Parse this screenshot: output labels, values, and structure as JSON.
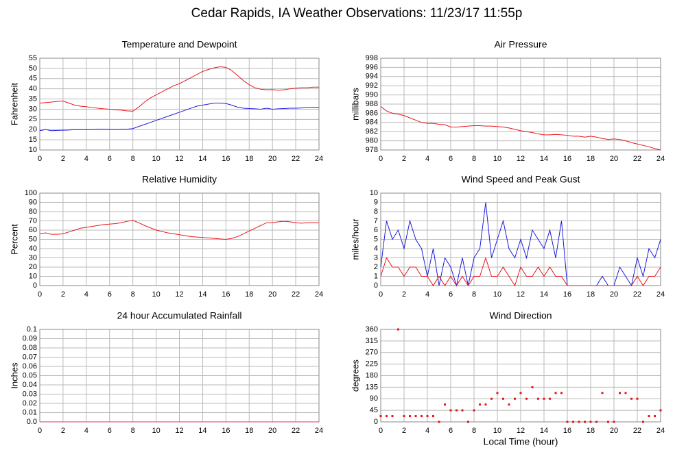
{
  "title": "Cedar Rapids, IA Weather Observations: 11/23/17 11:55p",
  "chart_data": [
    {
      "type": "line",
      "title": "Temperature and Dewpoint",
      "ylabel": "Fahrenheit",
      "x": [
        0,
        0.5,
        1,
        1.5,
        2,
        2.5,
        3,
        3.5,
        4,
        4.5,
        5,
        5.5,
        6,
        6.5,
        7,
        7.5,
        8,
        8.5,
        9,
        9.5,
        10,
        10.5,
        11,
        11.5,
        12,
        12.5,
        13,
        13.5,
        14,
        14.5,
        15,
        15.5,
        16,
        16.5,
        17,
        17.5,
        18,
        18.5,
        19,
        19.5,
        20,
        20.5,
        21,
        21.5,
        22,
        22.5,
        23,
        23.5,
        24
      ],
      "xlim": [
        0,
        24
      ],
      "xticks": [
        0,
        2,
        4,
        6,
        8,
        10,
        12,
        14,
        16,
        18,
        20,
        22,
        24
      ],
      "ylim": [
        10,
        55
      ],
      "yticks": [
        10,
        15,
        20,
        25,
        30,
        35,
        40,
        45,
        50,
        55
      ],
      "grid": true,
      "series": [
        {
          "color": "#e8141b",
          "values": [
            33,
            33.2,
            33.5,
            33.8,
            34,
            33,
            32,
            31.5,
            31.2,
            30.8,
            30.5,
            30.2,
            30,
            29.7,
            29.5,
            29.2,
            29,
            31,
            33.5,
            35.5,
            37,
            38.5,
            40,
            41.5,
            42.5,
            44,
            45.5,
            47,
            48.5,
            49.5,
            50.3,
            50.8,
            50.5,
            49,
            46.5,
            44,
            42,
            40.5,
            39.8,
            39.5,
            39.6,
            39.3,
            39.5,
            40,
            40.3,
            40.5,
            40.5,
            40.8,
            40.8
          ]
        },
        {
          "color": "#1a1ae0",
          "values": [
            19.5,
            20,
            19.5,
            19.6,
            19.7,
            19.8,
            20,
            20,
            20,
            20,
            20.2,
            20.2,
            20.1,
            20,
            20.1,
            20.2,
            20.5,
            21.5,
            22.5,
            23.5,
            24.5,
            25.5,
            26.5,
            27.5,
            28.5,
            29.5,
            30.5,
            31.5,
            32,
            32.5,
            33,
            33,
            32.8,
            32,
            31,
            30.5,
            30.3,
            30.2,
            30,
            30.5,
            30,
            30.2,
            30.3,
            30.5,
            30.5,
            30.6,
            30.8,
            31,
            31
          ]
        }
      ]
    },
    {
      "type": "line",
      "title": "Air Pressure",
      "ylabel": "millibars",
      "x": [
        0,
        0.5,
        1,
        1.5,
        2,
        2.5,
        3,
        3.5,
        4,
        4.5,
        5,
        5.5,
        6,
        6.5,
        7,
        7.5,
        8,
        8.5,
        9,
        9.5,
        10,
        10.5,
        11,
        11.5,
        12,
        12.5,
        13,
        13.5,
        14,
        14.5,
        15,
        15.5,
        16,
        16.5,
        17,
        17.5,
        18,
        18.5,
        19,
        19.5,
        20,
        20.5,
        21,
        21.5,
        22,
        22.5,
        23,
        23.5,
        24
      ],
      "xlim": [
        0,
        24
      ],
      "xticks": [
        0,
        2,
        4,
        6,
        8,
        10,
        12,
        14,
        16,
        18,
        20,
        22,
        24
      ],
      "ylim": [
        978,
        998
      ],
      "yticks": [
        978,
        980,
        982,
        984,
        986,
        988,
        990,
        992,
        994,
        996,
        998
      ],
      "grid": true,
      "series": [
        {
          "color": "#e8141b",
          "values": [
            987.5,
            986.5,
            986,
            985.8,
            985.5,
            985,
            984.5,
            984,
            983.8,
            983.8,
            983.6,
            983.5,
            983,
            983,
            983.1,
            983.2,
            983.3,
            983.3,
            983.2,
            983.2,
            983.1,
            983,
            982.8,
            982.5,
            982.2,
            982,
            981.8,
            981.5,
            981.3,
            981.3,
            981.4,
            981.3,
            981.2,
            981,
            981,
            980.8,
            981,
            980.8,
            980.5,
            980.3,
            980.4,
            980.3,
            980,
            979.6,
            979.3,
            979,
            978.7,
            978.3,
            978
          ]
        }
      ]
    },
    {
      "type": "line",
      "title": "Relative Humidity",
      "ylabel": "Percent",
      "x": [
        0,
        0.5,
        1,
        1.5,
        2,
        2.5,
        3,
        3.5,
        4,
        4.5,
        5,
        5.5,
        6,
        6.5,
        7,
        7.5,
        8,
        8.5,
        9,
        9.5,
        10,
        10.5,
        11,
        11.5,
        12,
        12.5,
        13,
        13.5,
        14,
        14.5,
        15,
        15.5,
        16,
        16.5,
        17,
        17.5,
        18,
        18.5,
        19,
        19.5,
        20,
        20.5,
        21,
        21.5,
        22,
        22.5,
        23,
        23.5,
        24
      ],
      "xlim": [
        0,
        24
      ],
      "xticks": [
        0,
        2,
        4,
        6,
        8,
        10,
        12,
        14,
        16,
        18,
        20,
        22,
        24
      ],
      "ylim": [
        0,
        100
      ],
      "yticks": [
        0,
        10,
        20,
        30,
        40,
        50,
        60,
        70,
        80,
        90,
        100
      ],
      "grid": true,
      "series": [
        {
          "color": "#e8141b",
          "values": [
            56,
            57,
            55.5,
            55.5,
            56,
            58,
            60,
            62,
            63,
            64,
            65,
            66,
            66.5,
            67,
            68,
            69.5,
            70.5,
            68,
            65,
            62.5,
            60,
            58.5,
            57,
            56,
            55,
            54,
            53,
            52.5,
            52,
            51.5,
            51,
            50.5,
            50,
            51,
            53,
            56,
            59,
            62,
            65,
            68,
            68,
            69,
            69.5,
            69,
            68,
            67.5,
            68,
            68,
            68
          ]
        }
      ]
    },
    {
      "type": "line",
      "title": "Wind Speed and Peak Gust",
      "ylabel": "miles/hour",
      "x": [
        0,
        0.5,
        1,
        1.5,
        2,
        2.5,
        3,
        3.5,
        4,
        4.5,
        5,
        5.5,
        6,
        6.5,
        7,
        7.5,
        8,
        8.5,
        9,
        9.5,
        10,
        10.5,
        11,
        11.5,
        12,
        12.5,
        13,
        13.5,
        14,
        14.5,
        15,
        15.5,
        16,
        16.5,
        17,
        17.5,
        18,
        18.5,
        19,
        19.5,
        20,
        20.5,
        21,
        21.5,
        22,
        22.5,
        23,
        23.5,
        24
      ],
      "xlim": [
        0,
        24
      ],
      "xticks": [
        0,
        2,
        4,
        6,
        8,
        10,
        12,
        14,
        16,
        18,
        20,
        22,
        24
      ],
      "ylim": [
        0,
        10
      ],
      "yticks": [
        0,
        1,
        2,
        3,
        4,
        5,
        6,
        7,
        8,
        9,
        10
      ],
      "grid": true,
      "series": [
        {
          "color": "#1a1ae0",
          "values": [
            2,
            7,
            5,
            6,
            4,
            7,
            5,
            4,
            1,
            4,
            0,
            3,
            2,
            0,
            3,
            0,
            3,
            4,
            9,
            3,
            5,
            7,
            4,
            3,
            5,
            3,
            6,
            5,
            4,
            6,
            3,
            7,
            0,
            0,
            0,
            0,
            0,
            0,
            1,
            0,
            0,
            2,
            1,
            0,
            3,
            1,
            4,
            3,
            5
          ]
        },
        {
          "color": "#e8141b",
          "values": [
            1,
            3,
            2,
            2,
            1,
            2,
            2,
            1,
            1,
            0,
            1,
            0,
            1,
            0,
            1,
            0,
            1,
            1,
            3,
            1,
            1,
            2,
            1,
            0,
            2,
            1,
            1,
            2,
            1,
            2,
            1,
            1,
            0,
            0,
            0,
            0,
            0,
            0,
            0,
            0,
            0,
            0,
            0,
            0,
            1,
            0,
            1,
            1,
            2
          ]
        }
      ]
    },
    {
      "type": "line",
      "title": "24 hour Accumulated Rainfall",
      "ylabel": "Inches",
      "x": [
        0,
        24
      ],
      "xlim": [
        0,
        24
      ],
      "xticks": [
        0,
        2,
        4,
        6,
        8,
        10,
        12,
        14,
        16,
        18,
        20,
        22,
        24
      ],
      "ylim": [
        0,
        0.1
      ],
      "yticks": [
        {
          "value": 0,
          "label": "0.0"
        },
        0.01,
        0.02,
        0.03,
        0.04,
        0.05,
        0.06,
        0.07,
        0.08,
        0.09,
        0.1
      ],
      "grid": true,
      "series": [
        {
          "color": "#d0307a",
          "values": [
            0,
            0
          ]
        }
      ]
    },
    {
      "type": "scatter",
      "title": "Wind Direction",
      "ylabel": "degrees",
      "xlabel": "Local Time (hour)",
      "x": [
        0,
        0.5,
        1,
        1.5,
        2,
        2.5,
        3,
        3.5,
        4,
        4.5,
        5,
        5.5,
        6,
        6.5,
        7,
        7.5,
        8,
        8.5,
        9,
        9.5,
        10,
        10.5,
        11,
        11.5,
        12,
        12.5,
        13,
        13.5,
        14,
        14.5,
        15,
        15.5,
        16,
        16.5,
        17,
        17.5,
        18,
        18.5,
        19,
        19.5,
        20,
        20.5,
        21,
        21.5,
        22,
        22.5,
        23,
        23.5,
        24
      ],
      "xlim": [
        0,
        24
      ],
      "xticks": [
        0,
        2,
        4,
        6,
        8,
        10,
        12,
        14,
        16,
        18,
        20,
        22,
        24
      ],
      "ylim": [
        0,
        360
      ],
      "yticks": [
        0,
        45,
        90,
        135,
        180,
        225,
        270,
        315,
        360
      ],
      "grid": true,
      "color": "#e8141b",
      "values": [
        22.5,
        22.5,
        22.5,
        360,
        22.5,
        22.5,
        22.5,
        22.5,
        22.5,
        22.5,
        0,
        67.5,
        45,
        45,
        45,
        0,
        45,
        67.5,
        67.5,
        90,
        112.5,
        90,
        67.5,
        90,
        112.5,
        90,
        135,
        90,
        90,
        90,
        112.5,
        112.5,
        0,
        0,
        0,
        0,
        0,
        0,
        112.5,
        0,
        0,
        112.5,
        112.5,
        90,
        90,
        0,
        22.5,
        22.5,
        45
      ]
    }
  ]
}
